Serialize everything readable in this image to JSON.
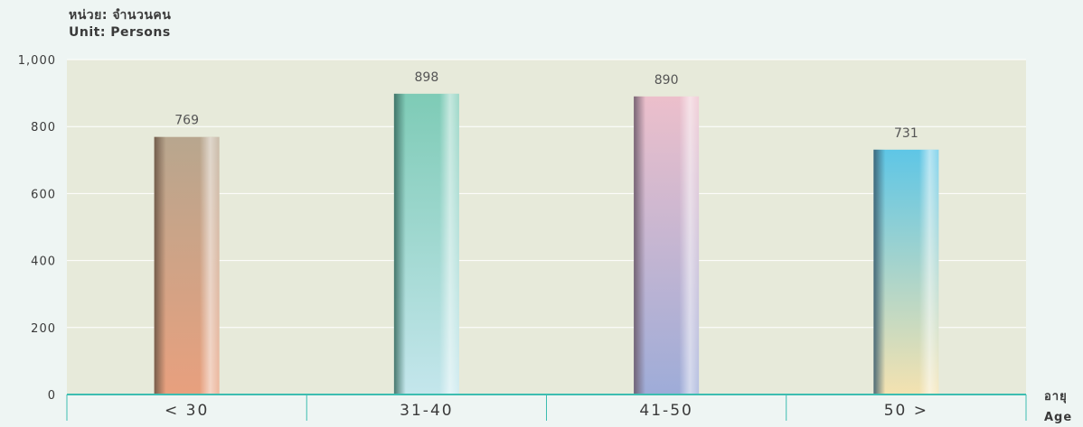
{
  "unit": {
    "thai": "หน่วย: จำนวนคน",
    "english": "Unit: Persons"
  },
  "x_axis_word": {
    "thai": "อายุ",
    "english": "Age"
  },
  "colors": {
    "plot_background": "#e7eada",
    "axis_line": "#3dbdb0",
    "gridline": "#ffffff",
    "bars": [
      [
        "#6b5545",
        "#b8a68e",
        "#e8a07e"
      ],
      [
        "#3a6b60",
        "#7ecbb6",
        "#c4e6ec"
      ],
      [
        "#6b5a6a",
        "#ecbfcb",
        "#9eacd8"
      ],
      [
        "#3a5c6e",
        "#5ec6e6",
        "#f4e2b0"
      ]
    ]
  },
  "chart_data": {
    "type": "bar",
    "categories": [
      "< 30",
      "31-40",
      "41-50",
      "50 >"
    ],
    "values": [
      769,
      898,
      890,
      731
    ],
    "data_labels": [
      "769",
      "898",
      "890",
      "731"
    ],
    "ylim": [
      0,
      1000
    ],
    "yticks": [
      0,
      200,
      400,
      600,
      800,
      1000
    ],
    "ytick_labels": [
      "0",
      "200",
      "400",
      "600",
      "800",
      "1,000"
    ],
    "grid": true,
    "legend": "none"
  }
}
